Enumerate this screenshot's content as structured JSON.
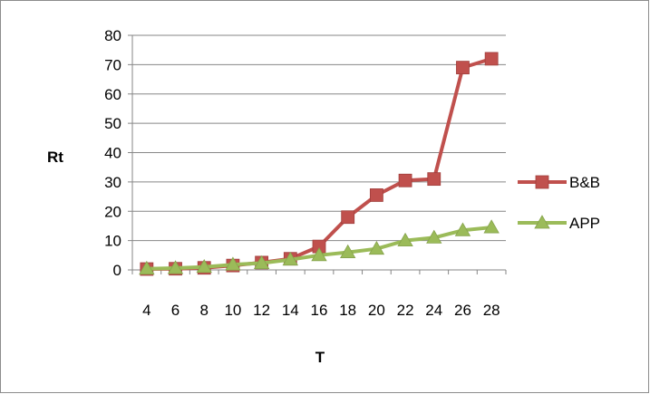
{
  "chart_data": {
    "type": "line",
    "title": "",
    "xlabel": "T",
    "ylabel": "Rt",
    "x": [
      4,
      6,
      8,
      10,
      12,
      14,
      16,
      18,
      20,
      22,
      24,
      26,
      28
    ],
    "xtick_labels": [
      "4",
      "6",
      "8",
      "10",
      "12",
      "14",
      "16",
      "18",
      "20",
      "22",
      "24",
      "26",
      "28"
    ],
    "ylim": [
      0,
      80
    ],
    "yticks": [
      "0",
      "10",
      "20",
      "30",
      "40",
      "50",
      "60",
      "70",
      "80"
    ],
    "grid": "horizontal",
    "legend": "right",
    "series": [
      {
        "name": "B&B",
        "color": "#c0504d",
        "marker": "square",
        "values": [
          0.3,
          0.4,
          0.7,
          1.5,
          2.5,
          3.8,
          8,
          18,
          25.5,
          30.5,
          31,
          69,
          72
        ]
      },
      {
        "name": "APP",
        "color": "#9bbb59",
        "marker": "triangle",
        "values": [
          0.4,
          0.6,
          1.0,
          1.8,
          2.3,
          3.5,
          5,
          6,
          7.2,
          10,
          11,
          13.5,
          14.5
        ]
      }
    ]
  }
}
